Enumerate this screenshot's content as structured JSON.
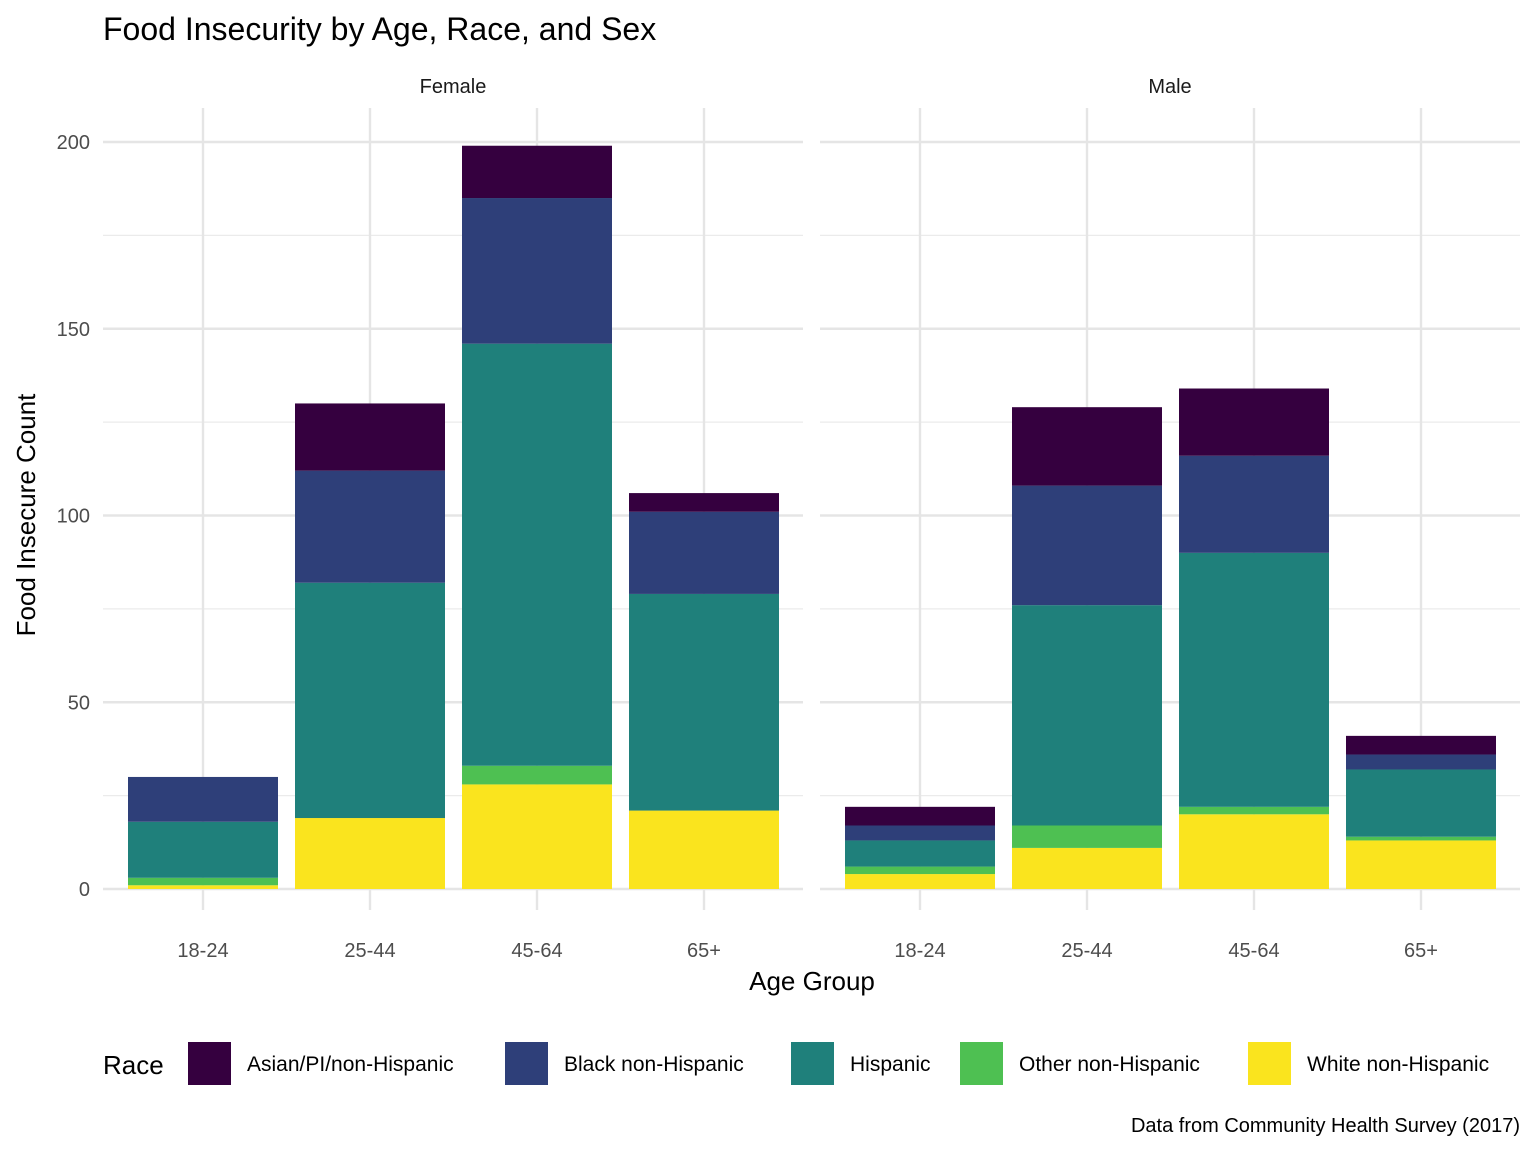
{
  "chart_data": {
    "type": "bar",
    "stacked": true,
    "title": "Food Insecurity by Age, Race, and Sex",
    "xlabel": "Age Group",
    "ylabel": "Food Insecure Count",
    "ylim": [
      0,
      200
    ],
    "y_ticks": [
      0,
      50,
      100,
      150,
      200
    ],
    "grid": true,
    "categories": [
      "18-24",
      "25-44",
      "45-64",
      "65+"
    ],
    "legend": {
      "title": "Race",
      "placement": "bottom",
      "entries": [
        "Asian/PI/non-Hispanic",
        "Black non-Hispanic",
        "Hispanic",
        "Other non-Hispanic",
        "White non-Hispanic"
      ]
    },
    "colors": {
      "Asian/PI/non-Hispanic": "#35003F",
      "Black non-Hispanic": "#2E3F79",
      "Hispanic": "#1F807B",
      "Other non-Hispanic": "#4EC052",
      "White non-Hispanic": "#FAE41E"
    },
    "caption": "Data from Community Health Survey (2017)",
    "panels": [
      {
        "name": "Female",
        "series": [
          {
            "name": "White non-Hispanic",
            "values": [
              1,
              19,
              28,
              21
            ]
          },
          {
            "name": "Other non-Hispanic",
            "values": [
              2,
              0,
              5,
              0
            ]
          },
          {
            "name": "Hispanic",
            "values": [
              15,
              63,
              113,
              58
            ]
          },
          {
            "name": "Black non-Hispanic",
            "values": [
              12,
              30,
              39,
              22
            ]
          },
          {
            "name": "Asian/PI/non-Hispanic",
            "values": [
              0,
              18,
              14,
              5
            ]
          }
        ]
      },
      {
        "name": "Male",
        "series": [
          {
            "name": "White non-Hispanic",
            "values": [
              4,
              11,
              20,
              13
            ]
          },
          {
            "name": "Other non-Hispanic",
            "values": [
              2,
              6,
              2,
              1
            ]
          },
          {
            "name": "Hispanic",
            "values": [
              7,
              59,
              68,
              18
            ]
          },
          {
            "name": "Black non-Hispanic",
            "values": [
              4,
              32,
              26,
              4
            ]
          },
          {
            "name": "Asian/PI/non-Hispanic",
            "values": [
              5,
              21,
              18,
              5
            ]
          }
        ]
      }
    ]
  }
}
